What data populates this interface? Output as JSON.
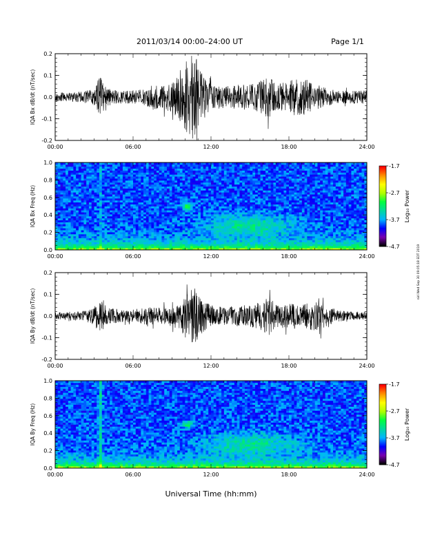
{
  "header": {
    "date_range": "2011/03/14  00:00–24:00 UT",
    "page": "Page 1/1"
  },
  "side_note": "niri Wed Sep 30 09:05:18 EDT 2019",
  "x_axis_title": "Universal Time (hh:mm)",
  "colorbar": {
    "label": "Log₁₀ Power",
    "ticks": [
      "-1.7",
      "-2.7",
      "-3.7",
      "-4.7"
    ],
    "tick_values": [
      -1.7,
      -2.7,
      -3.7,
      -4.7
    ],
    "range": [
      -4.7,
      -1.7
    ],
    "colors": [
      "#000000",
      "#7a00b0",
      "#0000ff",
      "#00b4ff",
      "#00d8a0",
      "#00ff40",
      "#b0ff00",
      "#ffff00",
      "#ff9000",
      "#ff0000"
    ]
  },
  "colors": {
    "spectrogram_background": "#1a5ae6",
    "spectrogram_mid": "#00c8ff",
    "waveform": "#000000"
  },
  "chart_data": [
    {
      "type": "line",
      "ylabel": "IQA Bx dB/dt (nT/sec)",
      "xlim": [
        0,
        24
      ],
      "ylim": [
        -0.2,
        0.2
      ],
      "xticks": [
        "00:00",
        "06:00",
        "12:00",
        "18:00",
        "24:00"
      ],
      "yticks": [
        "0.2",
        "0.1",
        "0.0",
        "-0.1",
        "-0.2"
      ],
      "ytick_values": [
        0.2,
        0.1,
        0.0,
        -0.1,
        -0.2
      ],
      "envelope": {
        "x": [
          0,
          1,
          2,
          3,
          3.4,
          4,
          5,
          6,
          7,
          7.5,
          8,
          9,
          9.5,
          10,
          10.3,
          10.6,
          10.8,
          11,
          11.5,
          12,
          13,
          14,
          15,
          16,
          16.5,
          17,
          18,
          19,
          19.5,
          20,
          21,
          22,
          23,
          24
        ],
        "y": [
          0.02,
          0.02,
          0.025,
          0.04,
          0.1,
          0.04,
          0.03,
          0.03,
          0.04,
          0.06,
          0.05,
          0.07,
          0.1,
          0.15,
          0.2,
          0.2,
          0.2,
          0.15,
          0.1,
          0.06,
          0.05,
          0.06,
          0.06,
          0.08,
          0.1,
          0.06,
          0.08,
          0.09,
          0.08,
          0.06,
          0.04,
          0.03,
          0.03,
          0.03
        ]
      }
    },
    {
      "type": "heatmap",
      "ylabel": "IQA Bx Freq (Hz)",
      "xlim": [
        0,
        24
      ],
      "ylim": [
        0,
        1.0
      ],
      "xticks": [
        "00:00",
        "06:00",
        "12:00",
        "18:00",
        "24:00"
      ],
      "yticks": [
        "1.0",
        "0.8",
        "0.6",
        "0.4",
        "0.2",
        "0.0"
      ],
      "ytick_values": [
        1.0,
        0.8,
        0.6,
        0.4,
        0.2,
        0.0
      ],
      "zlim": [
        -4.7,
        -1.7
      ]
    },
    {
      "type": "line",
      "ylabel": "IQA By dB/dt (nT/sec)",
      "xlim": [
        0,
        24
      ],
      "ylim": [
        -0.2,
        0.2
      ],
      "xticks": [
        "00:00",
        "06:00",
        "12:00",
        "18:00",
        "24:00"
      ],
      "yticks": [
        "0.2",
        "0.1",
        "0.0",
        "-0.1",
        "-0.2"
      ],
      "ytick_values": [
        0.2,
        0.1,
        0.0,
        -0.1,
        -0.2
      ],
      "envelope": {
        "x": [
          0,
          1,
          2,
          3,
          3.4,
          4,
          5,
          6,
          7,
          8,
          9,
          9.5,
          10,
          10.4,
          10.8,
          11,
          11.5,
          12,
          13,
          14,
          15,
          16,
          16.5,
          17,
          18,
          19,
          20,
          20.3,
          21,
          22,
          23,
          24
        ],
        "y": [
          0.015,
          0.02,
          0.02,
          0.04,
          0.08,
          0.04,
          0.03,
          0.03,
          0.04,
          0.04,
          0.05,
          0.06,
          0.1,
          0.12,
          0.13,
          0.1,
          0.07,
          0.05,
          0.04,
          0.05,
          0.05,
          0.07,
          0.09,
          0.05,
          0.06,
          0.05,
          0.07,
          0.09,
          0.04,
          0.03,
          0.02,
          0.02
        ]
      }
    },
    {
      "type": "heatmap",
      "ylabel": "IQA By Freq (Hz)",
      "xlim": [
        0,
        24
      ],
      "ylim": [
        0,
        1.0
      ],
      "xticks": [
        "00:00",
        "06:00",
        "12:00",
        "18:00",
        "24:00"
      ],
      "yticks": [
        "1.0",
        "0.8",
        "0.6",
        "0.4",
        "0.2",
        "0.0"
      ],
      "ytick_values": [
        1.0,
        0.8,
        0.6,
        0.4,
        0.2,
        0.0
      ],
      "zlim": [
        -4.7,
        -1.7
      ]
    }
  ]
}
